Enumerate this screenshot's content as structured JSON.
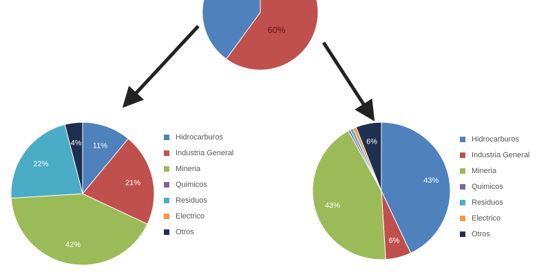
{
  "chart_data": [
    {
      "type": "pie",
      "id": "top",
      "categories": [
        "",
        ""
      ],
      "values": [
        60,
        40
      ],
      "labels": [
        "60%",
        ""
      ],
      "colors": [
        "#c0504d",
        "#4f81bd"
      ]
    },
    {
      "type": "pie",
      "id": "left",
      "categories": [
        "Hidrocarburos",
        "Industria General",
        "Mineria",
        "Quimicos",
        "Residuos",
        "Electrico",
        "Otros"
      ],
      "values": [
        11,
        21,
        42,
        0,
        22,
        0,
        4
      ],
      "labels": [
        "11%",
        "21%",
        "42%",
        "",
        "22%",
        "",
        "4%"
      ],
      "colors": [
        "#4f81bd",
        "#c0504d",
        "#9bbb59",
        "#8064a2",
        "#4bacc6",
        "#f79646",
        "#1f2f4f"
      ],
      "legend": "right"
    },
    {
      "type": "pie",
      "id": "right",
      "categories": [
        "Hidrocarburos",
        "Industria General",
        "Mineria",
        "Quimicos",
        "Residuos",
        "Electrico",
        "Otros"
      ],
      "values": [
        43,
        6,
        43,
        0.5,
        0.7,
        0.8,
        6
      ],
      "labels": [
        "43%",
        "6%",
        "43%",
        "",
        "",
        "",
        "6%"
      ],
      "colors": [
        "#4f81bd",
        "#c0504d",
        "#9bbb59",
        "#8064a2",
        "#4bacc6",
        "#f79646",
        "#1f2f4f"
      ],
      "legend": "right"
    }
  ],
  "colors": {
    "arrow": "#222222",
    "label_text": "#ffffff",
    "legend_text": "#555555"
  }
}
